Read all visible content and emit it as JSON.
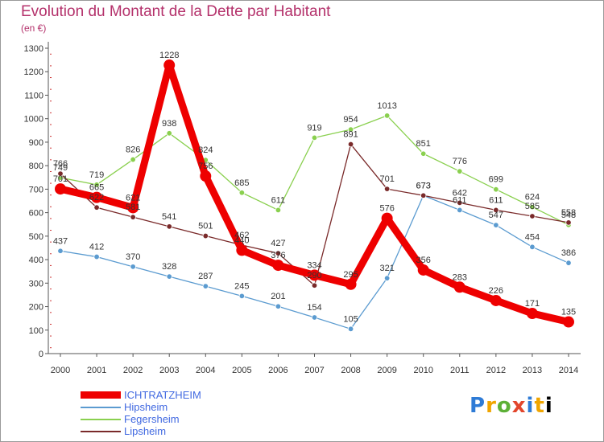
{
  "title": "Evolution du Montant de la Dette par Habitant",
  "subtitle": "(en €)",
  "logo_text": "Proxiti",
  "chart_data": {
    "type": "line",
    "title": "Evolution du Montant de la Dette par Habitant",
    "ylabel": "(en €)",
    "xlabel": "",
    "x": [
      2000,
      2001,
      2002,
      2003,
      2004,
      2005,
      2006,
      2007,
      2008,
      2009,
      2010,
      2011,
      2012,
      2013,
      2014
    ],
    "ylim": [
      0,
      1300
    ],
    "yticks": [
      0,
      100,
      200,
      300,
      400,
      500,
      600,
      700,
      800,
      900,
      1000,
      1100,
      1200,
      1300
    ],
    "grid": false,
    "legend_position": "bottom-left",
    "series": [
      {
        "name": "ICHTRATZHEIM",
        "color": "#ee0000",
        "values": [
          701,
          665,
          621,
          1228,
          756,
          440,
          376,
          334,
          295,
          576,
          356,
          283,
          226,
          171,
          135
        ]
      },
      {
        "name": "Hipsheim",
        "color": "#5b9bd0",
        "values": [
          437,
          412,
          370,
          328,
          287,
          245,
          201,
          154,
          105,
          321,
          673,
          611,
          547,
          454,
          386
        ]
      },
      {
        "name": "Fegersheim",
        "color": "#8ad04f",
        "values": [
          749,
          719,
          826,
          938,
          824,
          685,
          611,
          919,
          954,
          1013,
          851,
          776,
          699,
          624,
          548
        ]
      },
      {
        "name": "Lipsheim",
        "color": "#7a2a2a",
        "values": [
          766,
          622,
          581,
          541,
          501,
          462,
          427,
          290,
          891,
          701,
          673,
          642,
          611,
          585,
          558
        ]
      }
    ]
  }
}
